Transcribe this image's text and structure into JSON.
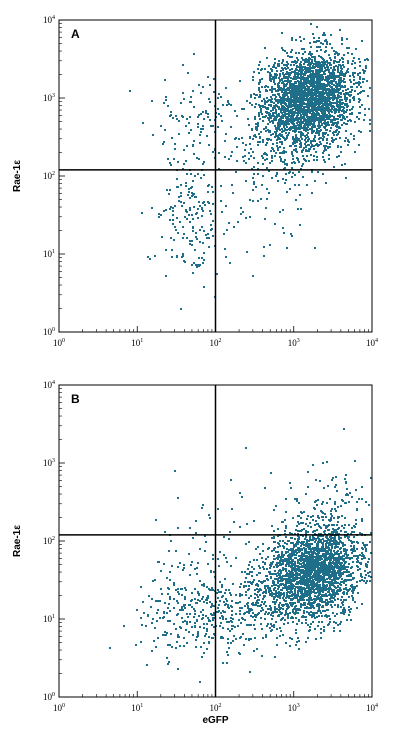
{
  "colors": {
    "dots": "#1f6f8b",
    "frame": "#000000",
    "gate": "#000000"
  },
  "chart_data": [
    {
      "type": "scatter",
      "panel_label": "A",
      "xlabel": "",
      "ylabel": "Rae-1ε",
      "x_scale": "log",
      "y_scale": "log",
      "xlim": [
        1,
        10000
      ],
      "ylim": [
        1,
        10000
      ],
      "x_ticks": [
        {
          "base": "10",
          "exp": "0",
          "value": 1
        },
        {
          "base": "10",
          "exp": "1",
          "value": 10
        },
        {
          "base": "10",
          "exp": "2",
          "value": 100
        },
        {
          "base": "10",
          "exp": "3",
          "value": 1000
        },
        {
          "base": "10",
          "exp": "4",
          "value": 10000
        }
      ],
      "y_ticks": [
        {
          "base": "10",
          "exp": "0",
          "value": 1
        },
        {
          "base": "10",
          "exp": "1",
          "value": 10
        },
        {
          "base": "10",
          "exp": "2",
          "value": 100
        },
        {
          "base": "10",
          "exp": "3",
          "value": 1000
        },
        {
          "base": "10",
          "exp": "4",
          "value": 10000
        }
      ],
      "quadrant_gate": {
        "x": 100,
        "y": 120
      },
      "populations": [
        {
          "center": [
            1600,
            1000
          ],
          "spread": [
            0.32,
            0.28
          ],
          "rotation": 0.75,
          "count": 2600
        },
        {
          "center": [
            700,
            250
          ],
          "spread": [
            0.38,
            0.3
          ],
          "rotation": 0.5,
          "count": 250
        },
        {
          "center": [
            45,
            35
          ],
          "spread": [
            0.2,
            0.42
          ],
          "rotation": 0.0,
          "count": 170
        },
        {
          "center": [
            60,
            500
          ],
          "spread": [
            0.26,
            0.32
          ],
          "rotation": 0.0,
          "count": 110
        },
        {
          "center": [
            300,
            30
          ],
          "spread": [
            0.4,
            0.35
          ],
          "rotation": 0.0,
          "count": 60
        }
      ],
      "seed": 7
    },
    {
      "type": "scatter",
      "panel_label": "B",
      "xlabel": "eGFP",
      "ylabel": "Rae-1ε",
      "x_scale": "log",
      "y_scale": "log",
      "xlim": [
        1,
        10000
      ],
      "ylim": [
        1,
        10000
      ],
      "x_ticks": [
        {
          "base": "10",
          "exp": "0",
          "value": 1
        },
        {
          "base": "10",
          "exp": "1",
          "value": 10
        },
        {
          "base": "10",
          "exp": "2",
          "value": 100
        },
        {
          "base": "10",
          "exp": "3",
          "value": 1000
        },
        {
          "base": "10",
          "exp": "4",
          "value": 10000
        }
      ],
      "y_ticks": [
        {
          "base": "10",
          "exp": "0",
          "value": 1
        },
        {
          "base": "10",
          "exp": "1",
          "value": 10
        },
        {
          "base": "10",
          "exp": "2",
          "value": 100
        },
        {
          "base": "10",
          "exp": "3",
          "value": 1000
        },
        {
          "base": "10",
          "exp": "4",
          "value": 10000
        }
      ],
      "quadrant_gate": {
        "x": 100,
        "y": 120
      },
      "populations": [
        {
          "center": [
            1800,
            40
          ],
          "spread": [
            0.32,
            0.27
          ],
          "rotation": 0.75,
          "count": 2300
        },
        {
          "center": [
            300,
            15
          ],
          "spread": [
            0.4,
            0.3
          ],
          "rotation": 0.3,
          "count": 350
        },
        {
          "center": [
            40,
            12
          ],
          "spread": [
            0.3,
            0.3
          ],
          "rotation": 0.0,
          "count": 220
        },
        {
          "center": [
            2500,
            300
          ],
          "spread": [
            0.32,
            0.28
          ],
          "rotation": 0.0,
          "count": 120
        },
        {
          "center": [
            80,
            120
          ],
          "spread": [
            0.35,
            0.35
          ],
          "rotation": 0.0,
          "count": 50
        }
      ],
      "seed": 19
    }
  ]
}
